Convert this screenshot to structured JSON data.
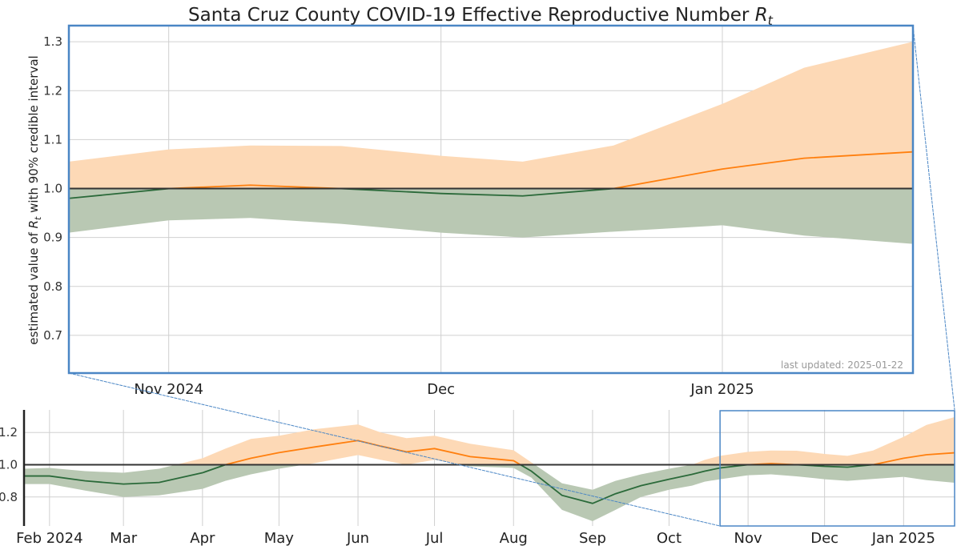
{
  "title": "Santa Cruz County COVID-19 Effective Reproductive Number ",
  "title_symbol": "R",
  "title_subscript": "t",
  "ylabel_prefix": "estimated value of ",
  "ylabel_symbol": "R",
  "ylabel_subscript": "t",
  "ylabel_suffix": " with 90% credible interval",
  "last_updated": "last updated: 2025-01-22",
  "colors": {
    "above_band": "#fdd9b6",
    "above_line": "#ff7f0e",
    "below_band": "#b9c8b3",
    "below_line": "#2b6a3a",
    "reference_line": "#333333",
    "zoom_box": "#4a86c5"
  },
  "chart_data": [
    {
      "type": "area",
      "panel": "zoomed",
      "title": "Santa Cruz County COVID-19 Effective Reproductive Number Rt",
      "ylabel": "estimated value of Rt with 90% credible interval",
      "xlim": [
        "2024-10-21",
        "2025-01-22"
      ],
      "ylim": [
        0.623,
        1.333
      ],
      "yticks": [
        "0.7",
        "0.8",
        "0.9",
        "1.0",
        "1.1",
        "1.2",
        "1.3"
      ],
      "xticks": [
        {
          "date": "2024-11-01",
          "label": "Nov 2024"
        },
        {
          "date": "2024-12-01",
          "label": "Dec"
        },
        {
          "date": "2025-01-01",
          "label": "Jan 2025"
        }
      ],
      "reference_line": 1.0,
      "grid": true
    },
    {
      "type": "area",
      "panel": "overview",
      "xlim": [
        "2024-01-22",
        "2025-01-21"
      ],
      "ylim": [
        0.62,
        1.34
      ],
      "yticks": [
        "0.8",
        "1.0",
        "1.2"
      ],
      "xticks": [
        {
          "date": "2024-02-01",
          "label": "Feb 2024"
        },
        {
          "date": "2024-03-01",
          "label": "Mar"
        },
        {
          "date": "2024-04-01",
          "label": "Apr"
        },
        {
          "date": "2024-05-01",
          "label": "May"
        },
        {
          "date": "2024-06-01",
          "label": "Jun"
        },
        {
          "date": "2024-07-01",
          "label": "Jul"
        },
        {
          "date": "2024-08-01",
          "label": "Aug"
        },
        {
          "date": "2024-09-01",
          "label": "Sep"
        },
        {
          "date": "2024-10-01",
          "label": "Oct"
        },
        {
          "date": "2024-11-01",
          "label": "Nov"
        },
        {
          "date": "2024-12-01",
          "label": "Dec"
        },
        {
          "date": "2025-01-01",
          "label": "Jan 2025"
        }
      ],
      "reference_line": 1.0,
      "zoom_window": [
        "2024-10-21",
        "2025-01-22"
      ],
      "grid": true
    }
  ],
  "series": {
    "dates": [
      "2024-01-22",
      "2024-02-01",
      "2024-02-15",
      "2024-03-01",
      "2024-03-15",
      "2024-04-01",
      "2024-04-10",
      "2024-04-20",
      "2024-05-01",
      "2024-05-15",
      "2024-06-01",
      "2024-06-10",
      "2024-06-20",
      "2024-07-01",
      "2024-07-15",
      "2024-08-01",
      "2024-08-08",
      "2024-08-20",
      "2024-09-01",
      "2024-09-10",
      "2024-09-20",
      "2024-10-01",
      "2024-10-10",
      "2024-10-15",
      "2024-10-21",
      "2024-11-01",
      "2024-11-10",
      "2024-11-20",
      "2024-12-01",
      "2024-12-10",
      "2024-12-20",
      "2025-01-01",
      "2025-01-10",
      "2025-01-22"
    ],
    "median": [
      0.93,
      0.93,
      0.9,
      0.88,
      0.89,
      0.95,
      1.0,
      1.04,
      1.075,
      1.11,
      1.15,
      1.115,
      1.08,
      1.1,
      1.05,
      1.025,
      0.96,
      0.81,
      0.76,
      0.82,
      0.87,
      0.91,
      0.94,
      0.96,
      0.98,
      1.0,
      1.007,
      1.0,
      0.99,
      0.985,
      1.0,
      1.04,
      1.062,
      1.075
    ],
    "lower": [
      0.88,
      0.88,
      0.84,
      0.8,
      0.81,
      0.85,
      0.9,
      0.94,
      0.975,
      1.01,
      1.06,
      1.03,
      1.0,
      1.03,
      0.99,
      0.98,
      0.92,
      0.72,
      0.65,
      0.72,
      0.8,
      0.845,
      0.87,
      0.895,
      0.91,
      0.935,
      0.94,
      0.928,
      0.91,
      0.9,
      0.912,
      0.925,
      0.904,
      0.887
    ],
    "upper": [
      0.975,
      0.98,
      0.96,
      0.95,
      0.975,
      1.04,
      1.1,
      1.16,
      1.18,
      1.22,
      1.25,
      1.2,
      1.165,
      1.18,
      1.13,
      1.09,
      1.015,
      0.885,
      0.845,
      0.9,
      0.94,
      0.975,
      1.0,
      1.03,
      1.055,
      1.08,
      1.088,
      1.087,
      1.067,
      1.055,
      1.088,
      1.173,
      1.247,
      1.3
    ]
  }
}
